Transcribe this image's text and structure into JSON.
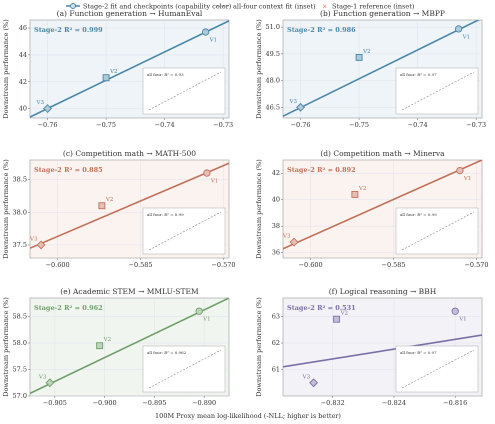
{
  "legend": [
    "Stage-2 fit and checkpoints (capability color)",
    "all-four context fit (inset)",
    "Stage-1 reference (inset)"
  ],
  "x_label": "100M Proxy mean log-likelihood (-NLL; higher is better)",
  "chart_data": [
    {
      "type": "scatter",
      "title": "(a) Function generation → HumanEval",
      "annotation": "Stage-2 R² = 0.999",
      "y_label": "Downstream performance (%)",
      "color": "#4a86a8",
      "background": "#eef4f7",
      "point_labels": [
        "V1",
        "V2",
        "V3"
      ],
      "x": [
        -0.733,
        -0.75,
        -0.76
      ],
      "values": [
        45.7,
        42.3,
        40.0
      ],
      "fit": {
        "x": [
          -0.763,
          -0.729
        ],
        "y": [
          39.37,
          46.54
        ]
      },
      "xlim": [
        -0.763,
        -0.729
      ],
      "ylim": [
        39.3,
        46.6
      ],
      "xticks": [
        {
          "value": -0.76,
          "label": "−0.76"
        },
        {
          "value": -0.75,
          "label": "−0.75"
        },
        {
          "value": -0.74,
          "label": "−0.74"
        },
        {
          "value": -0.73,
          "label": "−0.73"
        }
      ],
      "yticks": [
        40,
        42,
        44,
        46
      ],
      "inset_label": "all four: R² = 0.93"
    },
    {
      "type": "scatter",
      "title": "(b) Function generation → MBPP",
      "annotation": "Stage-2 R² = 0.986",
      "y_label": "Downstream performance (%)",
      "color": "#4a86a8",
      "background": "#eef4f7",
      "point_labels": [
        "V1",
        "V2",
        "V3"
      ],
      "x": [
        -0.733,
        -0.75,
        -0.76
      ],
      "values": [
        50.9,
        49.3,
        46.5
      ],
      "fit": {
        "x": [
          -0.763,
          -0.729
        ],
        "y": [
          46.0,
          51.5
        ]
      },
      "xlim": [
        -0.763,
        -0.729
      ],
      "ylim": [
        45.9,
        51.4
      ],
      "xticks": [
        {
          "value": -0.76,
          "label": "−0.76"
        },
        {
          "value": -0.75,
          "label": "−0.75"
        },
        {
          "value": -0.74,
          "label": "−0.74"
        },
        {
          "value": -0.73,
          "label": "−0.73"
        }
      ],
      "yticks": [
        {
          "value": 46.5,
          "label": "46.5"
        },
        {
          "value": 48,
          "label": "48.0"
        },
        {
          "value": 49.5,
          "label": "49.5"
        },
        {
          "value": 51,
          "label": "51.0"
        }
      ],
      "inset_label": "all four: R² = 0.97"
    },
    {
      "type": "scatter",
      "title": "(c) Competition math → MATH-500",
      "annotation": "Stage-2 R² = 0.885",
      "y_label": "Downstream performance (%)",
      "color": "#c0705a",
      "background": "#fbf3f0",
      "point_labels": [
        "V1",
        "V2",
        "V3"
      ],
      "x": [
        -0.573,
        -0.592,
        -0.603
      ],
      "values": [
        38.6,
        38.1,
        37.5
      ],
      "fit": {
        "x": [
          -0.605,
          -0.569
        ],
        "y": [
          37.45,
          38.75
        ]
      },
      "xlim": [
        -0.605,
        -0.569
      ],
      "ylim": [
        37.3,
        38.8
      ],
      "xticks": [
        {
          "value": -0.6,
          "label": "−0.600"
        },
        {
          "value": -0.585,
          "label": "−0.585"
        },
        {
          "value": -0.57,
          "label": "−0.570"
        }
      ],
      "yticks": [
        37.5,
        {
          "value": 38,
          "label": "38.0"
        },
        38.5
      ],
      "inset_label": "all four: R² = 0.99"
    },
    {
      "type": "scatter",
      "title": "(d) Competition math → Minerva",
      "annotation": "Stage-2 R² = 0.892",
      "y_label": "Downstream performance (%)",
      "color": "#c0705a",
      "background": "#fbf3f0",
      "point_labels": [
        "V1",
        "V2",
        "V3"
      ],
      "x": [
        -0.573,
        -0.592,
        -0.603
      ],
      "values": [
        42.2,
        40.4,
        36.8
      ],
      "fit": {
        "x": [
          -0.605,
          -0.569
        ],
        "y": [
          36.3,
          43.0
        ]
      },
      "xlim": [
        -0.605,
        -0.569
      ],
      "ylim": [
        35.6,
        43.0
      ],
      "xticks": [
        {
          "value": -0.6,
          "label": "−0.600"
        },
        {
          "value": -0.585,
          "label": "−0.585"
        },
        {
          "value": -0.57,
          "label": "−0.570"
        }
      ],
      "yticks": [
        36,
        38,
        40,
        42
      ],
      "inset_label": "all four: R² = 0.99"
    },
    {
      "type": "scatter",
      "title": "(e) Academic STEM → MMLU-STEM",
      "annotation": "Stage-2 R² = 0.962",
      "y_label": "Downstream performance (%)",
      "color": "#6f9e6a",
      "background": "#f1f5ef",
      "point_labels": [
        "V1",
        "V2",
        "V3"
      ],
      "x": [
        -0.8905,
        -0.9005,
        -0.9055
      ],
      "values": [
        58.6,
        57.95,
        57.25
      ],
      "fit": {
        "x": [
          -0.9075,
          -0.8875
        ],
        "y": [
          57.05,
          58.85
        ]
      },
      "xlim": [
        -0.9075,
        -0.8875
      ],
      "ylim": [
        57.0,
        58.85
      ],
      "xticks": [
        {
          "value": -0.905,
          "label": "−0.905"
        },
        {
          "value": -0.9,
          "label": "−0.900"
        },
        {
          "value": -0.895,
          "label": "−0.895"
        },
        {
          "value": -0.89,
          "label": "−0.890"
        }
      ],
      "yticks": [
        {
          "value": 57,
          "label": "57.0"
        },
        57.5,
        {
          "value": 58,
          "label": "58.0"
        },
        58.5
      ],
      "inset_label": "all four: R² = 0.962"
    },
    {
      "type": "scatter",
      "title": "(f) Logical reasoning → BBH",
      "annotation": "Stage-2 R² = 0.531",
      "y_label": "Downstream performance (%)",
      "color": "#7b6fa6",
      "background": "#f3f2f6",
      "point_labels": [
        "V1",
        "V2",
        "V3"
      ],
      "x": [
        -0.816,
        -0.8315,
        -0.8345
      ],
      "values": [
        63.2,
        62.9,
        60.5
      ],
      "fit": {
        "x": [
          -0.8385,
          -0.8125
        ],
        "y": [
          61.1,
          62.3
        ]
      },
      "xlim": [
        -0.8385,
        -0.8125
      ],
      "ylim": [
        60.0,
        63.7
      ],
      "xticks": [
        {
          "value": -0.832,
          "label": "−0.832"
        },
        {
          "value": -0.824,
          "label": "−0.824"
        },
        {
          "value": -0.816,
          "label": "−0.816"
        }
      ],
      "yticks": [
        61,
        62,
        63
      ],
      "inset_label": "all four: R² = 0.97"
    }
  ]
}
